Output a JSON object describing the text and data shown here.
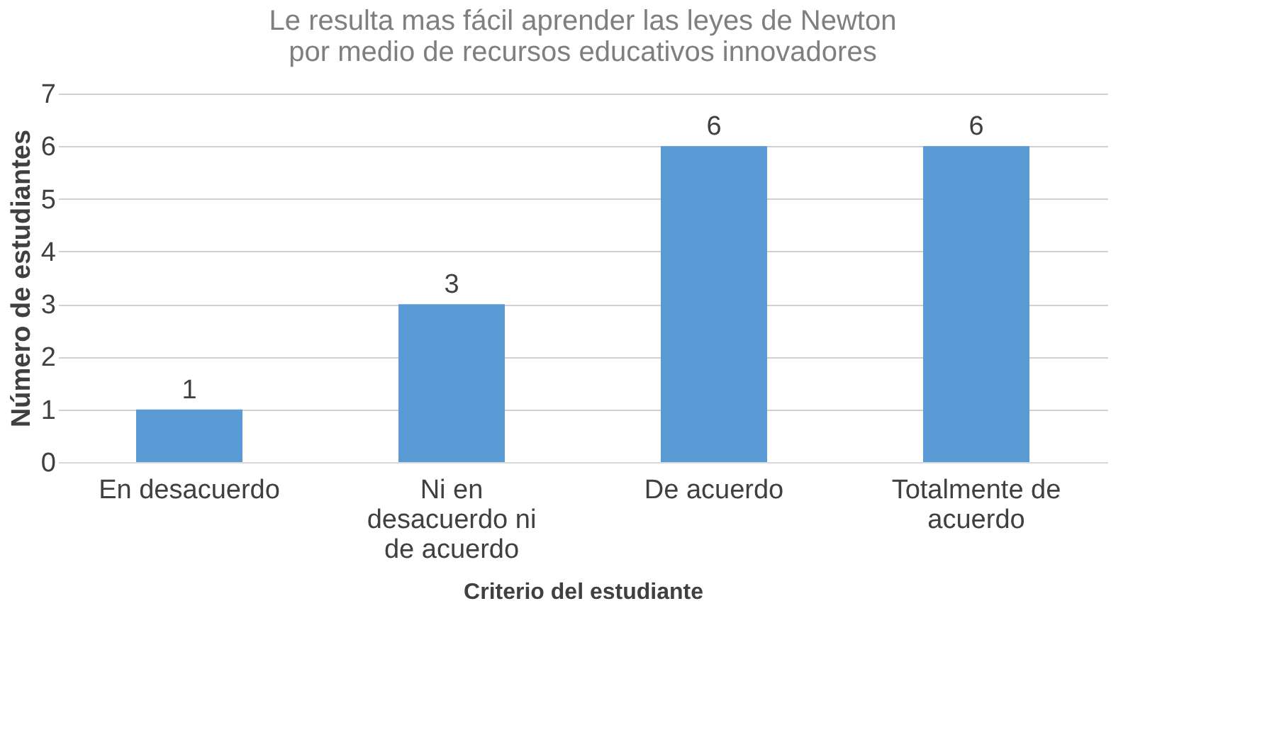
{
  "chart_data": {
    "type": "bar",
    "title": "Le resulta mas fácil aprender las leyes de Newton por medio de recursos educativos innovadores",
    "xlabel": "Criterio del estudiante",
    "ylabel": "Número de estudiantes",
    "categories": [
      "En desacuerdo",
      "Ni en desacuerdo ni de acuerdo",
      "De acuerdo",
      "Totalmente de acuerdo"
    ],
    "values": [
      1,
      3,
      6,
      6
    ],
    "color": "#5b9bd5",
    "ylim": [
      0,
      7
    ],
    "yticks": [
      0,
      1,
      2,
      3,
      4,
      5,
      6,
      7
    ],
    "grid": "y",
    "data_labels": true
  }
}
